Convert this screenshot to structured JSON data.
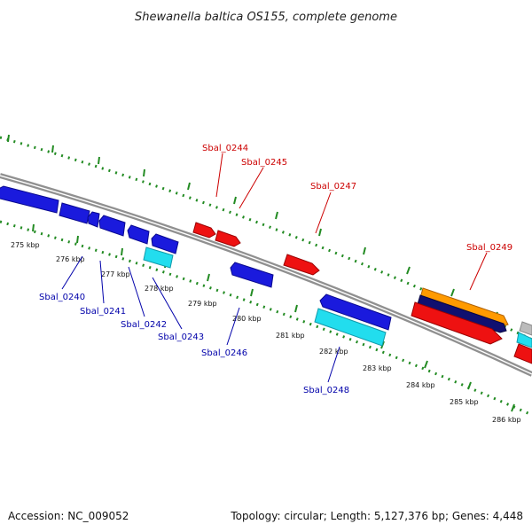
{
  "title": "Shewanella baltica OS155, complete genome",
  "footer": {
    "accession": "Accession: NC_009052",
    "topology": "Topology: circular; Length: 5,127,376 bp; Genes: 4,448"
  },
  "colors": {
    "backbone": "#909090",
    "tick": "#228B22",
    "forward_label": "#cc0000",
    "reverse_label": "#0000aa",
    "gene_forward": "#ee1111",
    "gene_reverse": "#1a1add",
    "gene_cyan": "#22ddee",
    "gene_orange": "#ff9a00",
    "gene_navy": "#101070"
  },
  "scale_labels": [
    "275 kbp",
    "276 kbp",
    "277 kbp",
    "278 kbp",
    "279 kbp",
    "280 kbp",
    "281 kbp",
    "282 kbp",
    "283 kbp",
    "284 kbp",
    "285 kbp",
    "286 kbp"
  ],
  "forward_genes": [
    "Sbal_0244",
    "Sbal_0245",
    "Sbal_0247",
    "Sbal_0249"
  ],
  "reverse_genes": [
    "Sbal_0240",
    "Sbal_0241",
    "Sbal_0242",
    "Sbal_0243",
    "Sbal_0246",
    "Sbal_0248"
  ]
}
